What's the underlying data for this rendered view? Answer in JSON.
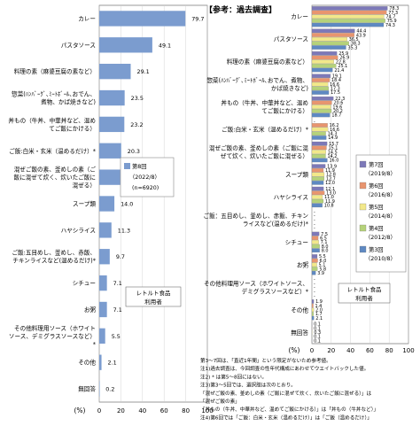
{
  "chart_data": [
    {
      "type": "bar",
      "title": "",
      "xlabel": "(%)",
      "ylabel": "",
      "xlim": [
        0,
        100
      ],
      "x_ticks": [
        "0",
        "20",
        "40",
        "60",
        "80",
        "100"
      ],
      "categories": [
        [
          "カレー"
        ],
        [
          "パスタソース"
        ],
        [
          "料理の素（麻婆豆腐の素など）"
        ],
        [
          "惣菜(ﾊﾝﾊﾞｰｸﾞ､ﾐｰﾄﾎﾞｰﾙ､おでん、",
          "煮物、かば焼きなど)"
        ],
        [
          "丼もの（牛丼、中華丼など、温め",
          "てご飯にかける）"
        ],
        [
          "ご飯:白米・玄米（温めるだけ）*"
        ],
        [
          "混ぜご飯の素、釜めしの素（ご",
          "飯に混ぜて炊く、炊いたご飯に",
          "混ぜる）"
        ],
        [
          "スープ類"
        ],
        [
          "ハヤシライス"
        ],
        [
          "ご飯:五目めし、釜めし、赤飯、",
          "チキンライスなど(温めるだけ)*"
        ],
        [
          "シチュー"
        ],
        [
          "お粥"
        ],
        [
          "その他料理用ソース（ホワイト",
          "ソース、デミグラスソースなど）",
          "*"
        ],
        [
          "その他"
        ],
        [
          "無回答"
        ]
      ],
      "series": [
        {
          "name": "第8回（2022/8）(n=6920)",
          "color": "#7b9ccf",
          "values": [
            79.7,
            49.1,
            29.1,
            23.5,
            23.2,
            20.3,
            19.5,
            14.0,
            11.3,
            9.7,
            7.1,
            7.1,
            5.5,
            2.1,
            0.2
          ]
        }
      ],
      "value_labels": [
        "79.7",
        "49.1",
        "29.1",
        "23.5",
        "23.2",
        "20.3",
        "19.5",
        "14.0",
        "11.3",
        "9.7",
        "7.1",
        "7.1",
        "5.5",
        "2.1",
        "0.2"
      ],
      "legend": {
        "lines": [
          "第8回",
          "（2022/8）",
          "(n=6920)"
        ],
        "placement": "right-middle"
      },
      "annotation": [
        "レトルト食品",
        "利用者"
      ]
    },
    {
      "type": "bar",
      "title": "【参考：過去調査】",
      "xlabel": "(%)",
      "ylabel": "",
      "xlim": [
        0,
        100
      ],
      "x_ticks": [
        "0",
        "20",
        "40",
        "60",
        "80",
        "100"
      ],
      "categories": [
        [
          "カレー"
        ],
        [
          "パスタソース"
        ],
        [
          "料理の素（麻婆豆腐の素など）"
        ],
        [
          "惣菜(ﾊﾝﾊﾞｰｸﾞ､ﾐｰﾄﾎﾞｰﾙ､おでん、煮物、",
          "かば焼きなど)"
        ],
        [
          "丼もの（牛丼、中華丼など、温め",
          "てご飯にかける）"
        ],
        [
          "ご飯:白米・玄米（温めるだけ）*"
        ],
        [
          "混ぜご飯の素、釜めしの素（ご飯に混",
          "ぜて炊く、炊いたご飯に混ぜる）"
        ],
        [
          "スープ類"
        ],
        [
          "ハヤシライス"
        ],
        [
          "ご飯：五目めし、釜めし、赤飯、チキン",
          "ライスなど(温めるだけ)*"
        ],
        [
          "シチュー"
        ],
        [
          "お粥"
        ],
        [
          "その他料理用ソース（ホワイトソース、",
          "デミグラスソースなど）*"
        ],
        [
          "その他"
        ],
        [
          "無回答"
        ]
      ],
      "series": [
        {
          "name": "第7回（2019/8）",
          "color": "#7d79b8",
          "values": [
            78.3,
            44.4,
            25.9,
            19.1,
            22.3,
            0.0,
            15.7,
            13.9,
            12.1,
            0.0,
            7.5,
            5.5,
            0.0,
            1.9,
            0.1
          ],
          "labels": [
            "78.3",
            "44.4",
            "25.9",
            "19.1",
            "22.3",
            "-",
            "15.7",
            "13.9",
            "12.1",
            "-",
            "7.5",
            "5.5",
            "-",
            "1.9",
            "0.1"
          ]
        },
        {
          "name": "第6回（2016/8）",
          "color": "#e8956f",
          "values": [
            77.3,
            43.9,
            26.9,
            18.4,
            20.6,
            16.2,
            15.1,
            11.9,
            13.0,
            0.0,
            6.5,
            6.0,
            0.0,
            1.4,
            0.1
          ],
          "labels": [
            "77.3",
            "43.9",
            "26.9",
            "18.4",
            "20.6",
            "16.2",
            "15.1",
            "11.9",
            "13.0",
            "-",
            "6.5",
            "6.0",
            "-",
            "1.4",
            "0.1"
          ]
        },
        {
          "name": "第5回（2014/8）",
          "color": "#f2e88a",
          "values": [
            74.7,
            36.5,
            22.8,
            16.6,
            19.6,
            16.6,
            14.5,
            12.8,
            11.0,
            0.0,
            7.1,
            5.1,
            0.0,
            2.0,
            0.3
          ],
          "labels": [
            "74.7",
            "36.5",
            "22.8",
            "16.6",
            "19.6",
            "16.6",
            "14.5",
            "12.8",
            "11.0",
            "-",
            "7.1",
            "5.1",
            "-",
            "2.0",
            "0.3"
          ]
        },
        {
          "name": "第4回（2012/8）",
          "color": "#b5d27a",
          "values": [
            75.9,
            38.3,
            25.1,
            17.3,
            20.2,
            14.3,
            14.2,
            12.7,
            11.9,
            0.0,
            8.0,
            5.8,
            0.0,
            1.7,
            0.1
          ],
          "labels": [
            "75.9",
            "38.3",
            "25.1",
            "17.3",
            "20.2",
            "14.3",
            "14.2",
            "12.7",
            "11.9",
            "-",
            "8.0",
            "5.8",
            "-",
            "1.7",
            "0.1"
          ]
        },
        {
          "name": "第3回（2010/8）",
          "color": "#5e89c2",
          "values": [
            74.3,
            35.3,
            21.4,
            17.5,
            18.7,
            14.9,
            16.0,
            12.0,
            10.8,
            0.0,
            8.0,
            3.9,
            0.0,
            2.1,
            0.1
          ],
          "labels": [
            "74.3",
            "35.3",
            "21.4",
            "17.5",
            "18.7",
            "14.9",
            "16.0",
            "12.0",
            "10.8",
            "-",
            "8.0",
            "3.9",
            "-",
            "2.1",
            "0.1"
          ]
        }
      ],
      "legend": {
        "placement": "right-middle"
      },
      "annotation": [
        "レトルト食品",
        "利用者"
      ]
    }
  ],
  "notes": [
    "第3～7回は、「直近1年間」という限定がないため参考値。",
    "注1)過去調査は、今回調査の性年代構成にあわせてウエイトバックした値。",
    "注2) * は第5～8回にはない。",
    "注3)第3～5回では、選択肢は次のとおり。",
    "「混ぜご飯の素、釜めしの素（ご飯に混ぜて炊く、炊いたご飯に混ぜる）」は",
    "「混ぜご飯の素」",
    "「丼もの（牛丼、中華丼など、温めてご飯にかける）」は「丼もの（牛丼など）」",
    "注4)第6回では「ご飯：白米・玄米（温めるだけ）」は「ご飯（温めるだけ）」"
  ]
}
